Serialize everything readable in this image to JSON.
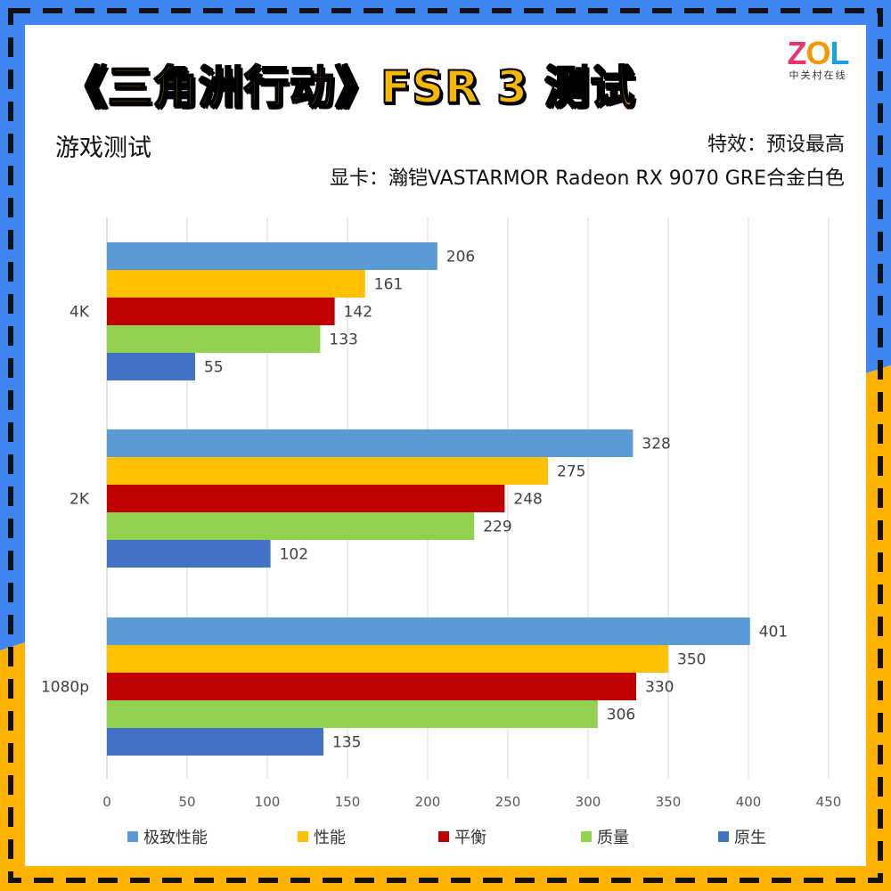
{
  "header": {
    "title": "《三角洲行动》FSR 3 测试",
    "subtitle": "游戏测试",
    "effects": "特效：预设最高",
    "gpu": "显卡：瀚铠VASTARMOR Radeon RX 9070 GRE合金白色"
  },
  "logo": {
    "mark": "ZOL",
    "subtext": "中关村在线"
  },
  "chart_data": {
    "type": "bar",
    "orientation": "horizontal",
    "categories": [
      "4K",
      "2K",
      "1080p"
    ],
    "series": [
      {
        "name": "极致性能",
        "color": "#5b9bd5",
        "values": [
          206,
          328,
          401
        ]
      },
      {
        "name": "性能",
        "color": "#ffc000",
        "values": [
          161,
          275,
          350
        ]
      },
      {
        "name": "平衡",
        "color": "#c00000",
        "values": [
          142,
          248,
          330
        ]
      },
      {
        "name": "质量",
        "color": "#92d050",
        "values": [
          133,
          229,
          306
        ]
      },
      {
        "name": "原生",
        "color": "#4472c4",
        "values": [
          55,
          102,
          135
        ]
      }
    ],
    "xlim": [
      0,
      450
    ],
    "xticks": [
      0,
      50,
      100,
      150,
      200,
      250,
      300,
      350,
      400,
      450
    ],
    "grid": true,
    "legend": "bottom"
  }
}
